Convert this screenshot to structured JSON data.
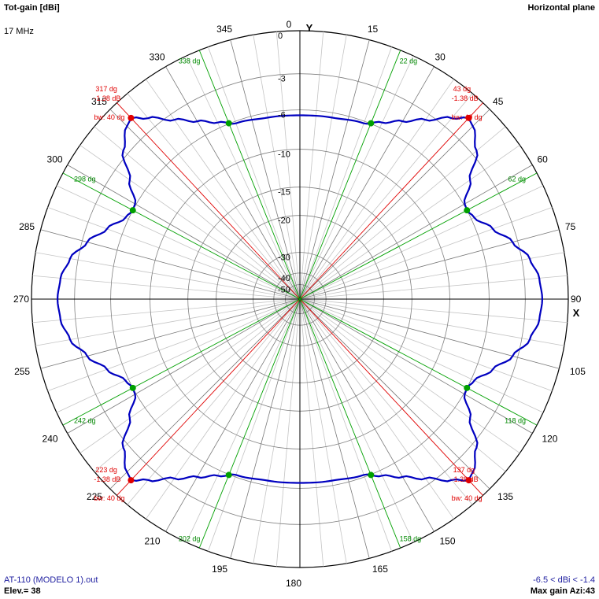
{
  "header": {
    "title": "Tot-gain [dBi]",
    "frequency": "17 MHz",
    "plane": "Horizontal plane"
  },
  "footer": {
    "file": "AT-110 (MODELO 1).out",
    "elevation": "Elev.= 38",
    "range": "-6.5 < dBi < -1.4",
    "max_gain": "Max gain Azi:43"
  },
  "axes": {
    "y_label": "Y",
    "x_label": "X"
  },
  "colors": {
    "pattern": "#0000c0",
    "max_marker": "#e00000",
    "halfpower_marker": "#00a000",
    "grid": "#808080",
    "axis": "#000000"
  },
  "chart_data": {
    "type": "polar",
    "title": "Tot-gain [dBi]",
    "plane": "Horizontal plane",
    "frequency": "17 MHz",
    "elevation_deg": 38,
    "angle_unit": "deg",
    "radial_ticks": [
      0,
      -3,
      -6,
      -10,
      -15,
      -20,
      -30,
      -40,
      -50
    ],
    "azimuth_labels": [
      0,
      15,
      30,
      45,
      60,
      75,
      90,
      105,
      120,
      135,
      150,
      165,
      180,
      195,
      210,
      225,
      240,
      255,
      270,
      285,
      300,
      315,
      330,
      345
    ],
    "series": [
      {
        "values_azimuth": [
          0,
          10,
          20,
          25,
          30,
          35,
          40,
          43,
          45,
          50,
          55,
          60,
          62,
          65,
          70,
          75,
          80,
          85,
          90
        ],
        "values_gain": [
          -6.5,
          -6.45,
          -6.2,
          -5.5,
          -4.6,
          -3.5,
          -2.2,
          -1.4,
          -1.6,
          -2.6,
          -4.4,
          -5.9,
          -6.0,
          -5.7,
          -4.6,
          -3.4,
          -2.4,
          -1.9,
          -1.75
        ],
        "symmetry": "mirror about 0-180 and 90-270 axes"
      }
    ],
    "max_markers": [
      {
        "azimuth": 43,
        "gain": -1.38,
        "label": "43 dg",
        "gain_label": "-1.38 dB",
        "bw_label": "bw: 40 dg"
      },
      {
        "azimuth": 137,
        "gain": -1.38,
        "label": "137 dg",
        "gain_label": "-1.38 dB",
        "bw_label": "bw: 40 dg"
      },
      {
        "azimuth": 223,
        "gain": -1.38,
        "label": "223 dg",
        "gain_label": "-1.38 dB",
        "bw_label": "bw: 40 dg"
      },
      {
        "azimuth": 317,
        "gain": -1.38,
        "label": "317 dg",
        "gain_label": "-1.38 dB",
        "bw_label": "bw: 40 dg"
      }
    ],
    "halfpower_markers": [
      {
        "azimuth": 22,
        "label": "22 dg"
      },
      {
        "azimuth": 62,
        "label": "62 dg"
      },
      {
        "azimuth": 118,
        "label": "118 dg"
      },
      {
        "azimuth": 158,
        "label": "158 dg"
      },
      {
        "azimuth": 202,
        "label": "202 dg"
      },
      {
        "azimuth": 242,
        "label": "242 dg"
      },
      {
        "azimuth": 298,
        "label": "298 dg"
      },
      {
        "azimuth": 338,
        "label": "338 dg"
      }
    ]
  }
}
